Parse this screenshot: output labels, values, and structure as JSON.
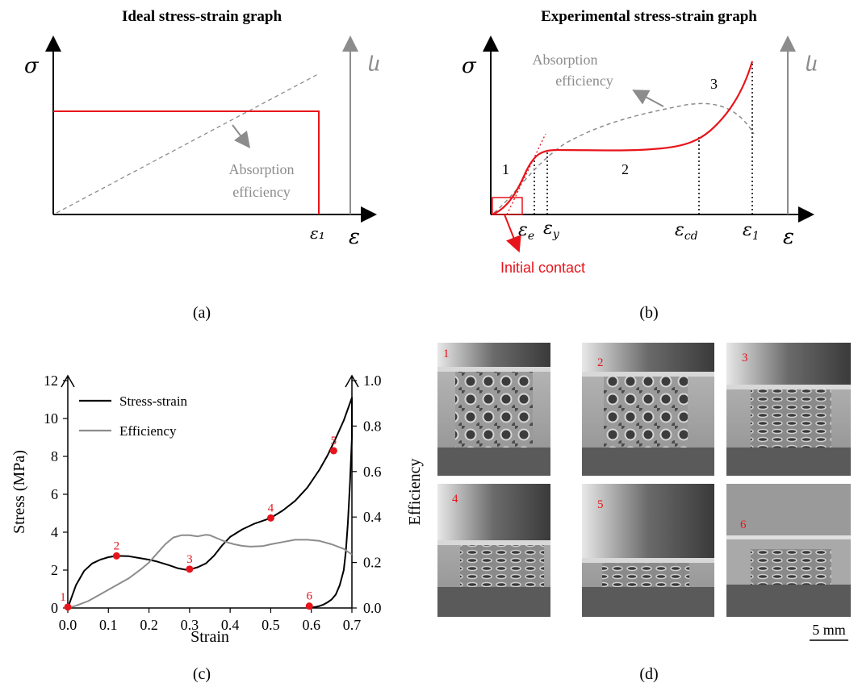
{
  "panel_a": {
    "title": "Ideal stress-strain graph",
    "label": "(a)",
    "y_symbol": "σ",
    "y2_symbol": "η",
    "x_symbol": "ε",
    "e1_label": "ε₁",
    "annotation_line1": "Absorption",
    "annotation_line2": "efficiency"
  },
  "panel_b": {
    "title": "Experimental stress-strain graph",
    "label": "(b)",
    "y_symbol": "σ",
    "y2_symbol": "η",
    "x_symbol": "ε",
    "annotation_line1": "Absorption",
    "annotation_line2": "efficiency",
    "region_labels": [
      "1",
      "2",
      "3"
    ],
    "strain_markers": [
      "εe",
      "εy",
      "εcd",
      "ε₁"
    ],
    "initial_contact": "Initial contact"
  },
  "panel_c": {
    "label": "(c)"
  },
  "panel_d": {
    "label": "(d)",
    "photo_labels": [
      "1",
      "2",
      "3",
      "4",
      "5",
      "6"
    ],
    "scale_bar": "5 mm"
  },
  "colors": {
    "red": "#e8141b",
    "grey": "#8c8c8c",
    "black": "#000000"
  },
  "chart_data": {
    "type": "line",
    "xlabel": "Strain",
    "ylabel": "Stress (MPa)",
    "y2label": "Efficiency",
    "xlim": [
      0,
      0.7
    ],
    "ylim": [
      0,
      12
    ],
    "y2lim": [
      0,
      1.0
    ],
    "xticks": [
      "0.0",
      "0.1",
      "0.2",
      "0.3",
      "0.4",
      "0.5",
      "0.6",
      "0.7"
    ],
    "yticks": [
      "0",
      "2",
      "4",
      "6",
      "8",
      "10",
      "12"
    ],
    "y2ticks": [
      "0.0",
      "0.2",
      "0.4",
      "0.6",
      "0.8",
      "1.0"
    ],
    "legend_position": "top-left",
    "series": [
      {
        "name": "Stress-strain",
        "color": "#000000",
        "axis": "left",
        "x": [
          0,
          0.01,
          0.02,
          0.04,
          0.06,
          0.08,
          0.1,
          0.12,
          0.15,
          0.18,
          0.2,
          0.22,
          0.25,
          0.27,
          0.29,
          0.3,
          0.32,
          0.34,
          0.36,
          0.38,
          0.4,
          0.43,
          0.46,
          0.5,
          0.53,
          0.56,
          0.59,
          0.62,
          0.64,
          0.66,
          0.68,
          0.7,
          0.7,
          0.695,
          0.69,
          0.685,
          0.68,
          0.67,
          0.66,
          0.65,
          0.64,
          0.63,
          0.62,
          0.61,
          0.6,
          0.595
        ],
        "y": [
          0,
          0.6,
          1.2,
          1.95,
          2.35,
          2.55,
          2.68,
          2.75,
          2.73,
          2.62,
          2.55,
          2.45,
          2.25,
          2.1,
          2.02,
          2.03,
          2.15,
          2.35,
          2.75,
          3.3,
          3.75,
          4.15,
          4.45,
          4.75,
          5.15,
          5.65,
          6.35,
          7.3,
          8.05,
          8.95,
          9.9,
          11.1,
          9.0,
          6.5,
          4.5,
          3.0,
          2.0,
          1.2,
          0.7,
          0.45,
          0.3,
          0.18,
          0.1,
          0.05,
          0.02,
          0.0
        ]
      },
      {
        "name": "Efficiency",
        "color": "#8c8c8c",
        "axis": "right",
        "x": [
          0,
          0.02,
          0.05,
          0.08,
          0.1,
          0.12,
          0.15,
          0.18,
          0.2,
          0.22,
          0.24,
          0.26,
          0.28,
          0.3,
          0.32,
          0.34,
          0.35,
          0.37,
          0.39,
          0.41,
          0.43,
          0.45,
          0.48,
          0.5,
          0.53,
          0.56,
          0.59,
          0.62,
          0.65,
          0.68,
          0.7
        ],
        "y": [
          0.0,
          0.01,
          0.03,
          0.06,
          0.08,
          0.1,
          0.13,
          0.17,
          0.2,
          0.24,
          0.28,
          0.31,
          0.32,
          0.32,
          0.315,
          0.322,
          0.32,
          0.305,
          0.29,
          0.28,
          0.273,
          0.27,
          0.272,
          0.28,
          0.29,
          0.3,
          0.3,
          0.295,
          0.28,
          0.26,
          0.235
        ]
      }
    ],
    "points": [
      {
        "label": "1",
        "x": 0.0,
        "y": 0.05
      },
      {
        "label": "2",
        "x": 0.12,
        "y": 2.75
      },
      {
        "label": "3",
        "x": 0.3,
        "y": 2.05
      },
      {
        "label": "4",
        "x": 0.5,
        "y": 4.75
      },
      {
        "label": "5",
        "x": 0.655,
        "y": 8.3
      },
      {
        "label": "6",
        "x": 0.595,
        "y": 0.1
      }
    ]
  }
}
